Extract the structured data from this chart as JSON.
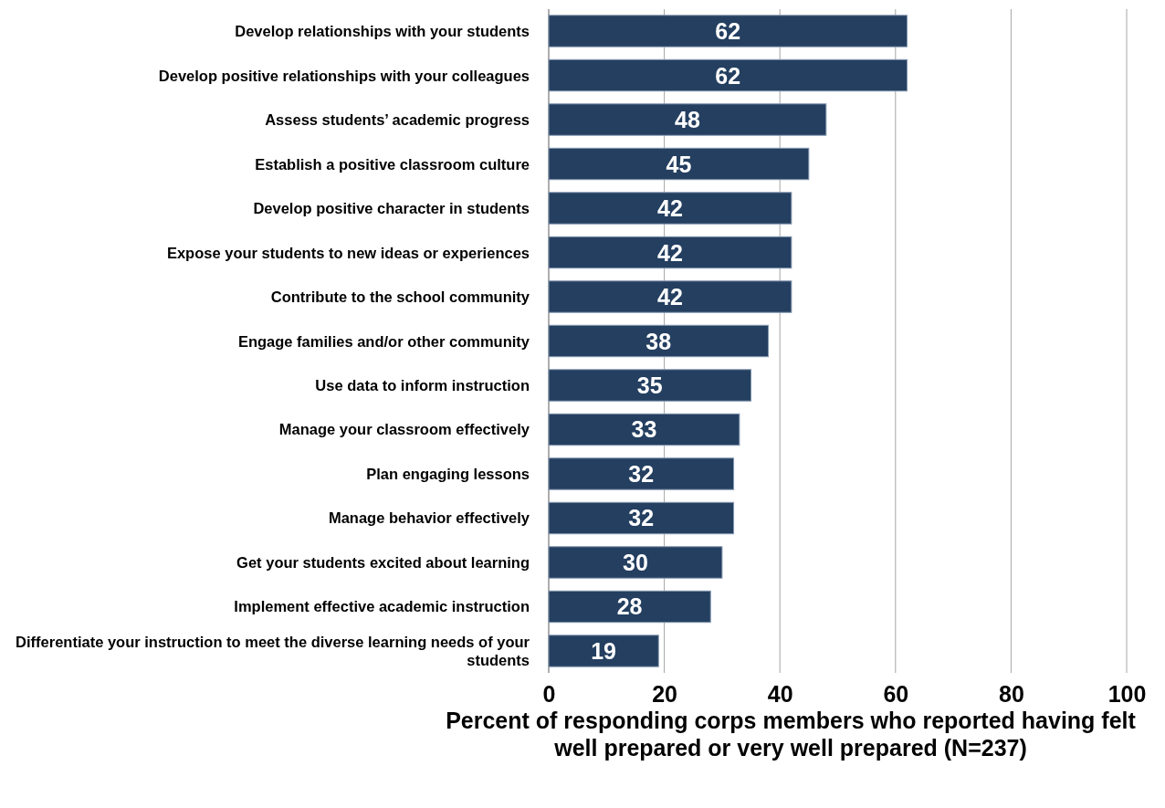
{
  "chart_data": {
    "type": "bar",
    "orientation": "horizontal",
    "categories": [
      "Develop relationships with your students",
      "Develop positive relationships with your colleagues",
      "Assess students’ academic progress",
      "Establish a positive classroom culture",
      "Develop positive character in students",
      "Expose your students to new ideas or experiences",
      "Contribute to the school community",
      "Engage families and/or other community",
      "Use data to inform instruction",
      "Manage your classroom effectively",
      "Plan engaging lessons",
      "Manage behavior effectively",
      "Get your students excited about learning",
      "Implement effective academic instruction",
      "Differentiate your instruction to meet the diverse learning needs of your students"
    ],
    "values": [
      62,
      62,
      48,
      45,
      42,
      42,
      42,
      38,
      35,
      33,
      32,
      32,
      30,
      28,
      19
    ],
    "color": "#243f60",
    "xlim": [
      0,
      100
    ],
    "xticks": [
      0,
      20,
      40,
      60,
      80,
      100
    ],
    "xlabel": "Percent of responding corps members who reported having felt well prepared or very well prepared (N=237)",
    "grid": "x",
    "data_labels": true
  }
}
